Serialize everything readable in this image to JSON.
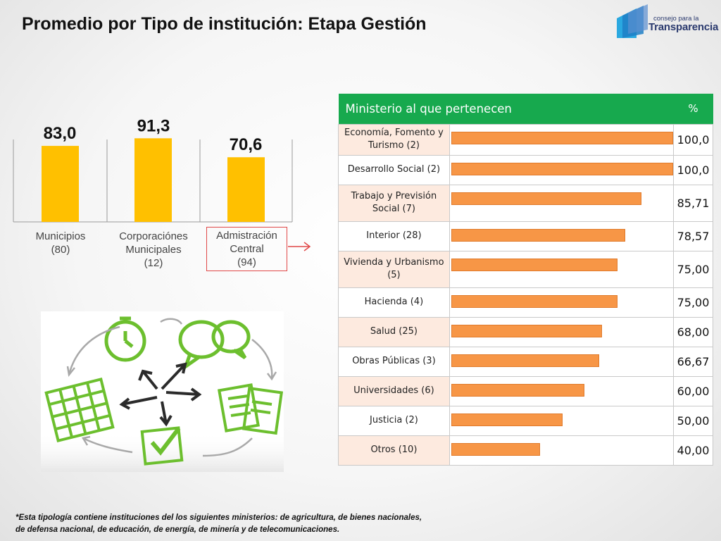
{
  "title": "Promedio por Tipo de institución: Etapa Gestión",
  "logo": {
    "small_text": "consejo para la",
    "big_text": "Transparencia"
  },
  "chart_data": {
    "type": "bar",
    "categories": [
      "Municipios (80)",
      "Corporaciónes Municipales (12)",
      "Admistración Central (94)"
    ],
    "category_lines": [
      [
        "Municipios",
        "(80)"
      ],
      [
        "Corporaciónes",
        "Municipales",
        "(12)"
      ],
      [
        "Admistración",
        "Central",
        "(94)"
      ]
    ],
    "values": [
      83.0,
      91.3,
      70.6
    ],
    "value_labels": [
      "83,0",
      "91,3",
      "70,6"
    ],
    "bar_color": "#ffc000",
    "highlight_category": "Admistración Central (94)",
    "highlight_color": "#e04848",
    "ylim": [
      0,
      100
    ],
    "grid": false
  },
  "table": {
    "header_name": "Ministerio al que pertenecen",
    "header_pct": "%",
    "header_color": "#17a94e",
    "bar_color": "#f79646",
    "rows": [
      {
        "name": "Economía, Fomento y Turismo (2)",
        "value": 100.0,
        "label": "100,0"
      },
      {
        "name": "Desarrollo Social (2)",
        "value": 100.0,
        "label": "100,0"
      },
      {
        "name": "Trabajo y Previsión Social (7)",
        "value": 85.71,
        "label": "85,71"
      },
      {
        "name": "Interior (28)",
        "value": 78.57,
        "label": "78,57"
      },
      {
        "name": "Vivienda y Urbanismo (5)",
        "value": 75.0,
        "label": "75,00"
      },
      {
        "name": "Hacienda (4)",
        "value": 75.0,
        "label": "75,00"
      },
      {
        "name": "Salud (25)",
        "value": 68.0,
        "label": "68,00"
      },
      {
        "name": "Obras Públicas (3)",
        "value": 66.67,
        "label": "66,67"
      },
      {
        "name": "Universidades (6)",
        "value": 60.0,
        "label": "60,00"
      },
      {
        "name": "Justicia (2)",
        "value": 50.0,
        "label": "50,00"
      },
      {
        "name": "Otros (10)",
        "value": 40.0,
        "label": "40,00"
      }
    ]
  },
  "footnote": {
    "line1": "*Esta tipología contiene instituciones del los siguientes ministerios: de agricultura, de bienes nacionales,",
    "line2": "de defensa nacional, de educación, de energía, de minería y de telecomunicaciones."
  }
}
